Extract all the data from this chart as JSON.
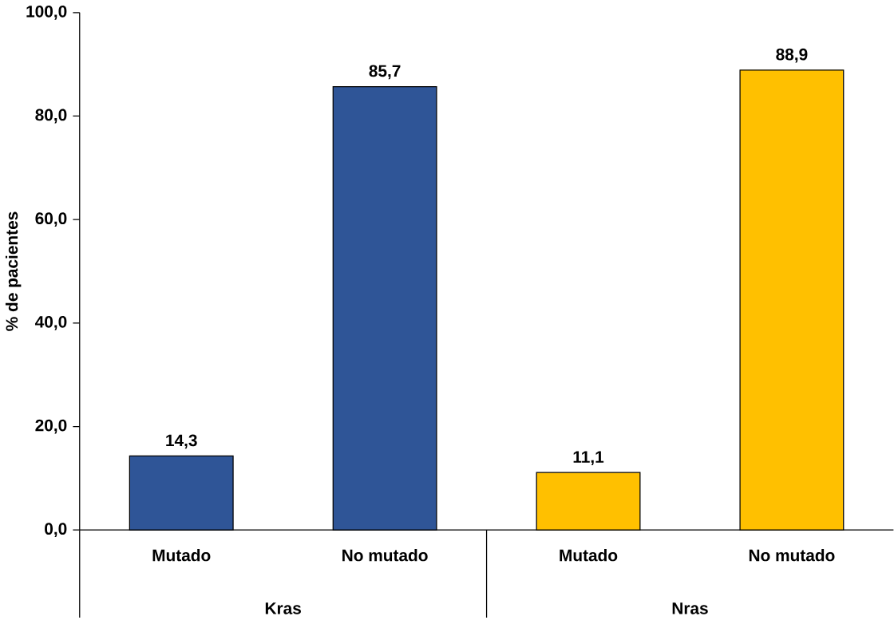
{
  "chart_data": {
    "type": "bar",
    "ylabel": "% de pacientes",
    "categories": [
      "Mutado",
      "No mutado",
      "Mutado",
      "No mutado"
    ],
    "values": [
      14.3,
      85.7,
      11.1,
      88.9
    ],
    "colors": [
      "#2f5597",
      "#2f5597",
      "#ffc000",
      "#ffc000"
    ],
    "value_labels": [
      "14,3",
      "85,7",
      "11,1",
      "88,9"
    ],
    "ylim": [
      0,
      100
    ],
    "yticks": [
      {
        "value": 0,
        "label": "0,0"
      },
      {
        "value": 20,
        "label": "20,0"
      },
      {
        "value": 40,
        "label": "40,0"
      },
      {
        "value": 60,
        "label": "60,0"
      },
      {
        "value": 80,
        "label": "80,0"
      },
      {
        "value": 100,
        "label": "100,0"
      }
    ],
    "annotations": [
      "Kras",
      "Nras"
    ],
    "grid": false
  }
}
